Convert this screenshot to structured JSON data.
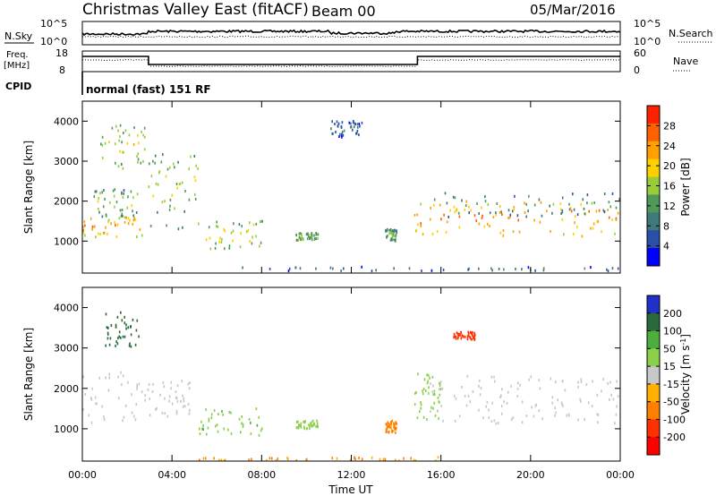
{
  "header": {
    "title": "Christmas Valley East (fitACF)",
    "beam": "Beam 00",
    "date": "05/Mar/2016"
  },
  "status_panels": {
    "nsky_label": "N.Sky",
    "nsky_ticks": [
      "10^5",
      "10^0"
    ],
    "nsearch_label": "N.Search",
    "freq_label": "Freq.",
    "freq_unit": "[MHz]",
    "freq_ticks": [
      "18",
      "8"
    ],
    "nave_label": "Nave",
    "nave_ticks": [
      "60",
      "0"
    ],
    "cpid_label": "CPID",
    "cpid_value": "normal (fast) 151 RF"
  },
  "x_axis": {
    "label": "Time UT",
    "ticks": [
      "00:00",
      "04:00",
      "08:00",
      "12:00",
      "16:00",
      "20:00",
      "00:00"
    ]
  },
  "chart_data": [
    {
      "type": "heatmap",
      "parameter": "Power",
      "ylabel": "Slant Range [km]",
      "yticks": [
        "1000",
        "2000",
        "3000",
        "4000"
      ],
      "ylim": [
        200,
        4500
      ],
      "xlabel": "Time UT",
      "xlim_hours": [
        0,
        24
      ],
      "colorbar": {
        "label": "Power [dB]",
        "ticks": [
          "4",
          "8",
          "12",
          "16",
          "20",
          "24",
          "28"
        ],
        "range": [
          0,
          32
        ],
        "colors": [
          "#0000ff",
          "#2a4fa8",
          "#3e7a7a",
          "#4f9a5a",
          "#9acc3a",
          "#ffd000",
          "#ffa000",
          "#ff6000",
          "#ff2000"
        ]
      },
      "echo_regions": [
        {
          "t": [
            0.0,
            2.8
          ],
          "r": [
            1100,
            1600
          ],
          "level": 22
        },
        {
          "t": [
            0.5,
            2.5
          ],
          "r": [
            1600,
            2300
          ],
          "level": 13
        },
        {
          "t": [
            0.8,
            2.8
          ],
          "r": [
            2800,
            4000
          ],
          "level": 15
        },
        {
          "t": [
            2.9,
            5.2
          ],
          "r": [
            1300,
            3200
          ],
          "level": 14
        },
        {
          "t": [
            5.5,
            8.0
          ],
          "r": [
            800,
            1500
          ],
          "level": 16
        },
        {
          "t": [
            9.5,
            10.5
          ],
          "r": [
            1000,
            1200
          ],
          "level": 14
        },
        {
          "t": [
            11.0,
            12.5
          ],
          "r": [
            3600,
            4000
          ],
          "level": 6
        },
        {
          "t": [
            13.5,
            14.0
          ],
          "r": [
            1000,
            1300
          ],
          "level": 12
        },
        {
          "t": [
            14.8,
            24.0
          ],
          "r": [
            1100,
            2000
          ],
          "level": 22
        },
        {
          "t": [
            15.5,
            24.0
          ],
          "r": [
            1600,
            2200
          ],
          "level": 10
        },
        {
          "t": [
            6.5,
            24.0
          ],
          "r": [
            250,
            350
          ],
          "level": 7
        }
      ]
    },
    {
      "type": "heatmap",
      "parameter": "Velocity",
      "ylabel": "Slant Range [km]",
      "yticks": [
        "1000",
        "2000",
        "3000",
        "4000"
      ],
      "ylim": [
        200,
        4500
      ],
      "xlabel": "Time UT",
      "xlim_hours": [
        0,
        24
      ],
      "colorbar": {
        "label": "Velocity [m s^-1]",
        "ticks": [
          "200",
          "100",
          "50",
          "15",
          "-15",
          "-50",
          "-100",
          "-200"
        ],
        "colors": [
          "#2030c8",
          "#2a6a3a",
          "#4cae3c",
          "#8ad04a",
          "#c8c8c8",
          "#ffb000",
          "#ff8000",
          "#ff3000",
          "#ff0000"
        ]
      },
      "echo_regions": [
        {
          "t": [
            0.0,
            2.8
          ],
          "r": [
            1100,
            2400
          ],
          "v": 0
        },
        {
          "t": [
            1.0,
            2.5
          ],
          "r": [
            3000,
            3900
          ],
          "v": 150
        },
        {
          "t": [
            2.9,
            4.8
          ],
          "r": [
            1300,
            2200
          ],
          "v": 0
        },
        {
          "t": [
            5.0,
            8.0
          ],
          "r": [
            800,
            1500
          ],
          "v": 40
        },
        {
          "t": [
            9.5,
            10.5
          ],
          "r": [
            1000,
            1200
          ],
          "v": 30
        },
        {
          "t": [
            13.5,
            14.0
          ],
          "r": [
            900,
            1200
          ],
          "v": -60
        },
        {
          "t": [
            14.8,
            16.0
          ],
          "r": [
            1200,
            2400
          ],
          "v": 30
        },
        {
          "t": [
            15.5,
            24.0
          ],
          "r": [
            1100,
            2300
          ],
          "v": 0
        },
        {
          "t": [
            16.5,
            17.5
          ],
          "r": [
            3200,
            3400
          ],
          "v": -120
        },
        {
          "t": [
            5.0,
            16.0
          ],
          "r": [
            200,
            300
          ],
          "v": -50
        }
      ]
    }
  ]
}
